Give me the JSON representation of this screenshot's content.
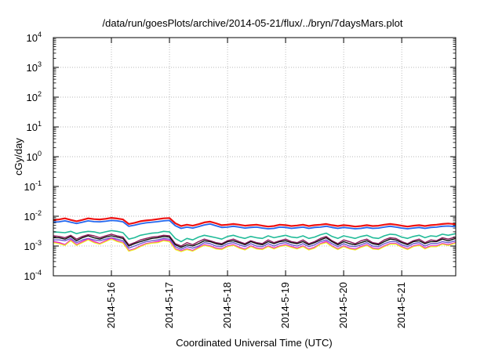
{
  "chart_data": {
    "type": "line",
    "title": "/data/run/goesPlots/archive/2014-05-21/flux/../bryn/7daysMars.plot",
    "xlabel": "Coordinated Universal Time (UTC)",
    "ylabel": "cGy/day",
    "yscale": "log",
    "ylim": [
      0.0001,
      10000
    ],
    "xlim": [
      0,
      6.93
    ],
    "grid": true,
    "y_ticks": [
      {
        "value": 0.0001,
        "base": "10",
        "exp": "-4"
      },
      {
        "value": 0.001,
        "base": "10",
        "exp": "-3"
      },
      {
        "value": 0.01,
        "base": "10",
        "exp": "-2"
      },
      {
        "value": 0.1,
        "base": "10",
        "exp": "-1"
      },
      {
        "value": 1,
        "base": "10",
        "exp": "0"
      },
      {
        "value": 10,
        "base": "10",
        "exp": "1"
      },
      {
        "value": 100,
        "base": "10",
        "exp": "2"
      },
      {
        "value": 1000,
        "base": "10",
        "exp": "3"
      },
      {
        "value": 10000,
        "base": "10",
        "exp": "4"
      }
    ],
    "x_ticks": [
      {
        "value": 1,
        "label": "2014-5-16"
      },
      {
        "value": 2,
        "label": "2014-5-17"
      },
      {
        "value": 3,
        "label": "2014-5-18"
      },
      {
        "value": 4,
        "label": "2014-5-19"
      },
      {
        "value": 5,
        "label": "2014-5-20"
      },
      {
        "value": 6,
        "label": "2014-5-21"
      }
    ],
    "x": [
      0.0,
      0.1,
      0.2,
      0.3,
      0.4,
      0.5,
      0.6,
      0.7,
      0.8,
      0.9,
      1.0,
      1.1,
      1.2,
      1.3,
      1.4,
      1.5,
      1.6,
      1.7,
      1.8,
      1.9,
      2.0,
      2.1,
      2.2,
      2.3,
      2.4,
      2.5,
      2.6,
      2.7,
      2.8,
      2.9,
      3.0,
      3.1,
      3.2,
      3.3,
      3.4,
      3.5,
      3.6,
      3.7,
      3.8,
      3.9,
      4.0,
      4.1,
      4.2,
      4.3,
      4.4,
      4.5,
      4.6,
      4.7,
      4.8,
      4.9,
      5.0,
      5.1,
      5.2,
      5.3,
      5.4,
      5.5,
      5.6,
      5.7,
      5.8,
      5.9,
      6.0,
      6.1,
      6.2,
      6.3,
      6.4,
      6.5,
      6.6,
      6.7,
      6.8,
      6.93
    ],
    "series": [
      {
        "color": "#ee1111",
        "width": 2.2,
        "values": [
          0.0075,
          0.0078,
          0.0085,
          0.0075,
          0.0068,
          0.0075,
          0.0085,
          0.008,
          0.0078,
          0.0082,
          0.0088,
          0.0084,
          0.0078,
          0.0055,
          0.006,
          0.0068,
          0.0072,
          0.0075,
          0.008,
          0.0085,
          0.0087,
          0.0058,
          0.0047,
          0.0052,
          0.0048,
          0.0054,
          0.0062,
          0.0066,
          0.0058,
          0.005,
          0.0052,
          0.0055,
          0.0052,
          0.0048,
          0.005,
          0.0052,
          0.0048,
          0.0045,
          0.0047,
          0.0052,
          0.005,
          0.0047,
          0.0049,
          0.0052,
          0.0047,
          0.005,
          0.0052,
          0.0055,
          0.005,
          0.0047,
          0.005,
          0.0048,
          0.0045,
          0.0047,
          0.005,
          0.0047,
          0.0048,
          0.0052,
          0.0055,
          0.0052,
          0.0048,
          0.0045,
          0.0048,
          0.005,
          0.0047,
          0.005,
          0.0052,
          0.0055,
          0.0057,
          0.0054
        ]
      },
      {
        "color": "#2266ee",
        "width": 1.8,
        "values": [
          0.0063,
          0.0065,
          0.007,
          0.0063,
          0.0057,
          0.0063,
          0.007,
          0.0066,
          0.0065,
          0.0068,
          0.0072,
          0.007,
          0.0065,
          0.0046,
          0.005,
          0.0056,
          0.006,
          0.0063,
          0.0066,
          0.007,
          0.0072,
          0.0048,
          0.0039,
          0.0043,
          0.004,
          0.0045,
          0.0051,
          0.0055,
          0.0048,
          0.0042,
          0.0043,
          0.0046,
          0.0043,
          0.004,
          0.0042,
          0.0043,
          0.004,
          0.0038,
          0.0039,
          0.0043,
          0.0042,
          0.0039,
          0.0041,
          0.0043,
          0.0039,
          0.0042,
          0.0043,
          0.0046,
          0.0042,
          0.0039,
          0.0042,
          0.004,
          0.0038,
          0.0039,
          0.0042,
          0.0039,
          0.004,
          0.0043,
          0.0046,
          0.0043,
          0.004,
          0.0038,
          0.004,
          0.0042,
          0.0039,
          0.0042,
          0.0043,
          0.0046,
          0.0047,
          0.0045
        ]
      },
      {
        "color": "#22bb99",
        "width": 1.6,
        "values": [
          0.003,
          0.0029,
          0.0028,
          0.0031,
          0.0026,
          0.0029,
          0.0031,
          0.003,
          0.0027,
          0.003,
          0.0033,
          0.0031,
          0.0028,
          0.0017,
          0.0019,
          0.0023,
          0.0025,
          0.0027,
          0.0028,
          0.0031,
          0.003,
          0.0018,
          0.0014,
          0.0018,
          0.0016,
          0.002,
          0.0023,
          0.0021,
          0.0019,
          0.0017,
          0.0021,
          0.0023,
          0.002,
          0.0018,
          0.0021,
          0.0019,
          0.0018,
          0.0022,
          0.0019,
          0.0021,
          0.0023,
          0.002,
          0.0019,
          0.0022,
          0.0018,
          0.002,
          0.0024,
          0.0027,
          0.0021,
          0.0018,
          0.0022,
          0.002,
          0.0018,
          0.0021,
          0.0023,
          0.0019,
          0.0018,
          0.0022,
          0.0025,
          0.0024,
          0.002,
          0.0018,
          0.0021,
          0.0023,
          0.0019,
          0.0022,
          0.0021,
          0.0025,
          0.0023,
          0.0026
        ]
      },
      {
        "color": "#8a1a5a",
        "width": 1.4,
        "values": [
          0.0022,
          0.0021,
          0.0019,
          0.0023,
          0.0017,
          0.0021,
          0.0024,
          0.0022,
          0.0019,
          0.0022,
          0.0025,
          0.0022,
          0.002,
          0.0011,
          0.0013,
          0.0016,
          0.0018,
          0.002,
          0.0021,
          0.0023,
          0.0022,
          0.0012,
          0.001,
          0.0013,
          0.0011,
          0.0014,
          0.0017,
          0.0015,
          0.0013,
          0.0012,
          0.0015,
          0.0017,
          0.0014,
          0.0012,
          0.0015,
          0.0013,
          0.0012,
          0.0016,
          0.0013,
          0.0015,
          0.0017,
          0.0014,
          0.0013,
          0.0016,
          0.0012,
          0.0014,
          0.0018,
          0.0021,
          0.0015,
          0.0012,
          0.0016,
          0.0014,
          0.0012,
          0.0015,
          0.0017,
          0.0013,
          0.0012,
          0.0016,
          0.0019,
          0.0018,
          0.0014,
          0.0012,
          0.0015,
          0.0017,
          0.0013,
          0.0016,
          0.0015,
          0.0019,
          0.0017,
          0.002
        ]
      },
      {
        "color": "#111111",
        "width": 1.4,
        "values": [
          0.0019,
          0.0019,
          0.0017,
          0.0021,
          0.0015,
          0.0019,
          0.0022,
          0.0019,
          0.0017,
          0.002,
          0.0022,
          0.002,
          0.0018,
          0.001,
          0.0012,
          0.0014,
          0.0016,
          0.0018,
          0.0019,
          0.0021,
          0.002,
          0.0011,
          0.0009,
          0.0011,
          0.001,
          0.0012,
          0.0015,
          0.0014,
          0.0012,
          0.0011,
          0.0014,
          0.0015,
          0.0013,
          0.0011,
          0.0014,
          0.0012,
          0.0011,
          0.0014,
          0.0012,
          0.0014,
          0.0015,
          0.0013,
          0.0012,
          0.0014,
          0.0011,
          0.0013,
          0.0016,
          0.0019,
          0.0014,
          0.0011,
          0.0014,
          0.0012,
          0.0011,
          0.0013,
          0.0015,
          0.0012,
          0.0011,
          0.0014,
          0.0017,
          0.0016,
          0.0013,
          0.0011,
          0.0014,
          0.0015,
          0.0012,
          0.0014,
          0.0014,
          0.0017,
          0.0015,
          0.0018
        ]
      },
      {
        "color": "#6a5acd",
        "width": 1.4,
        "values": [
          0.0016,
          0.0016,
          0.0015,
          0.0018,
          0.0013,
          0.0016,
          0.0018,
          0.0016,
          0.0015,
          0.0017,
          0.0019,
          0.0017,
          0.0015,
          0.00085,
          0.001,
          0.0012,
          0.0014,
          0.0015,
          0.0016,
          0.0018,
          0.0017,
          0.00095,
          0.00078,
          0.00095,
          0.00085,
          0.001,
          0.0013,
          0.0012,
          0.001,
          0.00095,
          0.0012,
          0.0013,
          0.0011,
          0.00095,
          0.0012,
          0.001,
          0.00095,
          0.0012,
          0.001,
          0.0012,
          0.0013,
          0.0011,
          0.001,
          0.0012,
          0.00095,
          0.0011,
          0.0014,
          0.0016,
          0.0012,
          0.00095,
          0.0012,
          0.001,
          0.00095,
          0.0011,
          0.0013,
          0.001,
          0.00095,
          0.0012,
          0.0014,
          0.0014,
          0.0011,
          0.00095,
          0.0012,
          0.0013,
          0.001,
          0.0012,
          0.0012,
          0.0014,
          0.0013,
          0.0015
        ]
      },
      {
        "color": "#ee22cc",
        "width": 1.8,
        "values": [
          0.0014,
          0.0013,
          0.0011,
          0.0016,
          0.0011,
          0.0014,
          0.0017,
          0.0014,
          0.0012,
          0.0015,
          0.0018,
          0.0015,
          0.0013,
          0.0007,
          0.0008,
          0.001,
          0.0012,
          0.0013,
          0.0014,
          0.0016,
          0.0015,
          0.0008,
          0.00068,
          0.0008,
          0.0007,
          0.0009,
          0.0011,
          0.001,
          0.00085,
          0.0008,
          0.001,
          0.0011,
          0.0009,
          0.00078,
          0.001,
          0.00085,
          0.0008,
          0.001,
          0.00085,
          0.001,
          0.0011,
          0.00095,
          0.00085,
          0.001,
          0.00078,
          0.0009,
          0.0012,
          0.0014,
          0.001,
          0.0008,
          0.001,
          0.00085,
          0.00078,
          0.00095,
          0.0011,
          0.00085,
          0.0008,
          0.001,
          0.0012,
          0.0012,
          0.00095,
          0.0008,
          0.001,
          0.0011,
          0.00085,
          0.001,
          0.001,
          0.0012,
          0.0011,
          0.0013
        ]
      },
      {
        "color": "#eeee22",
        "width": 1.3,
        "values": [
          0.0013,
          0.0012,
          0.00105,
          0.0015,
          0.00105,
          0.0013,
          0.0016,
          0.0013,
          0.00115,
          0.0014,
          0.0017,
          0.0014,
          0.00125,
          0.00067,
          0.00076,
          0.00095,
          0.00115,
          0.00125,
          0.0013,
          0.0015,
          0.0014,
          0.00076,
          0.00065,
          0.00076,
          0.00067,
          0.00085,
          0.00105,
          0.00095,
          0.0008,
          0.00076,
          0.00095,
          0.00105,
          0.00085,
          0.00074,
          0.00095,
          0.0008,
          0.00076,
          0.00095,
          0.0008,
          0.00095,
          0.00105,
          0.0009,
          0.0008,
          0.00095,
          0.00074,
          0.00085,
          0.00115,
          0.0013,
          0.00095,
          0.00076,
          0.00095,
          0.0008,
          0.00074,
          0.0009,
          0.00105,
          0.0008,
          0.00076,
          0.00095,
          0.00115,
          0.00115,
          0.0009,
          0.00076,
          0.00095,
          0.00105,
          0.0008,
          0.00095,
          0.00095,
          0.00115,
          0.00105,
          0.00125
        ]
      }
    ]
  }
}
